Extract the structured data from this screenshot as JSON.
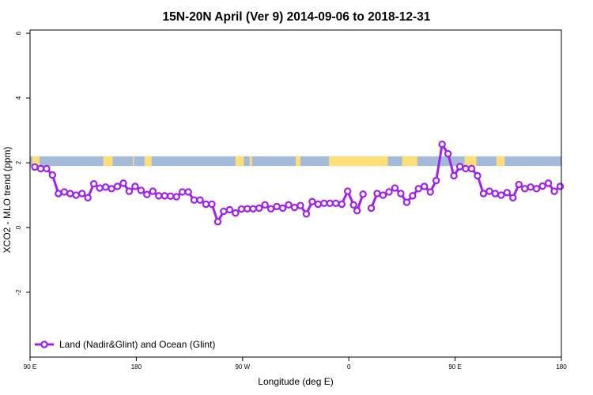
{
  "chart_data": {
    "type": "line",
    "title": "15N-20N April (Ver 9)   2014-09-06 to 2018-12-31",
    "xlabel": "Longitude (deg E)",
    "ylabel": "XCO2 - MLO trend (ppm)",
    "x_ticks": [
      {
        "value": 90,
        "label": "90 E"
      },
      {
        "value": 180,
        "label": "180"
      },
      {
        "value": 270,
        "label": "90 W"
      },
      {
        "value": 360,
        "label": "0"
      },
      {
        "value": 450,
        "label": "90 E"
      },
      {
        "value": 540,
        "label": "180"
      }
    ],
    "y_ticks": [
      {
        "value": -2,
        "label": "-2"
      },
      {
        "value": 0,
        "label": "0"
      },
      {
        "value": 2,
        "label": "2"
      },
      {
        "value": 4,
        "label": "4"
      },
      {
        "value": 6,
        "label": "6"
      }
    ],
    "xlim": [
      90,
      540
    ],
    "ylim": [
      -4,
      6.1
    ],
    "grid": false,
    "legend_position": "bottom-left",
    "colors": {
      "series": "#a020f0",
      "ocean_band": "#a3bad8",
      "land_band": "#ffdd77"
    },
    "band": {
      "y_range": [
        1.9,
        2.2
      ],
      "land_segments": [
        [
          92,
          98
        ],
        [
          152,
          157
        ],
        [
          157,
          160
        ],
        [
          177,
          178
        ],
        [
          187,
          193
        ],
        [
          264,
          271
        ],
        [
          276,
          278
        ],
        [
          315,
          319
        ],
        [
          343,
          393
        ],
        [
          405,
          418
        ],
        [
          458,
          468
        ],
        [
          485,
          492
        ]
      ]
    },
    "series": [
      {
        "name": "Land (Nadir&Glint) and Ocean (Glint)",
        "points": [
          [
            94,
            1.87
          ],
          [
            99,
            1.82
          ],
          [
            104,
            1.82
          ],
          [
            109,
            1.62
          ],
          [
            114,
            1.05
          ],
          [
            119,
            1.1
          ],
          [
            124,
            1.05
          ],
          [
            129,
            1.0
          ],
          [
            134,
            1.05
          ],
          [
            139,
            0.92
          ],
          [
            144,
            1.35
          ],
          [
            149,
            1.22
          ],
          [
            154,
            1.25
          ],
          [
            159,
            1.2
          ],
          [
            164,
            1.27
          ],
          [
            169,
            1.37
          ],
          [
            174,
            1.12
          ],
          [
            179,
            1.27
          ],
          [
            184,
            1.15
          ],
          [
            189,
            1.02
          ],
          [
            194,
            1.12
          ],
          [
            199,
            0.98
          ],
          [
            204,
            0.98
          ],
          [
            209,
            0.97
          ],
          [
            214,
            0.95
          ],
          [
            219,
            1.1
          ],
          [
            224,
            1.1
          ],
          [
            229,
            0.85
          ],
          [
            234,
            0.85
          ],
          [
            239,
            0.72
          ],
          [
            244,
            0.72
          ],
          [
            249,
            0.18
          ],
          [
            254,
            0.5
          ],
          [
            259,
            0.55
          ],
          [
            264,
            0.45
          ],
          [
            269,
            0.57
          ],
          [
            274,
            0.58
          ],
          [
            279,
            0.58
          ],
          [
            284,
            0.6
          ],
          [
            289,
            0.7
          ],
          [
            294,
            0.58
          ],
          [
            299,
            0.65
          ],
          [
            304,
            0.6
          ],
          [
            309,
            0.7
          ],
          [
            314,
            0.62
          ],
          [
            319,
            0.68
          ],
          [
            324,
            0.42
          ],
          [
            329,
            0.8
          ],
          [
            334,
            0.72
          ],
          [
            339,
            0.75
          ],
          [
            344,
            0.75
          ],
          [
            349,
            0.75
          ],
          [
            354,
            0.72
          ],
          [
            359,
            1.12
          ],
          [
            364,
            0.7
          ],
          [
            367,
            0.52
          ],
          [
            372,
            1.03
          ],
          null,
          [
            379,
            0.6
          ],
          [
            384,
            1.05
          ],
          [
            389,
            1.0
          ],
          [
            394,
            1.1
          ],
          [
            399,
            1.22
          ],
          [
            404,
            1.05
          ],
          [
            409,
            0.78
          ],
          [
            414,
            0.98
          ],
          [
            419,
            1.2
          ],
          [
            424,
            1.27
          ],
          [
            429,
            1.1
          ],
          [
            434,
            1.45
          ],
          [
            439,
            2.57
          ],
          [
            444,
            2.28
          ],
          [
            449,
            1.6
          ],
          [
            454,
            1.88
          ],
          [
            459,
            1.82
          ],
          [
            464,
            1.82
          ],
          [
            469,
            1.6
          ],
          [
            474,
            1.05
          ],
          [
            479,
            1.12
          ],
          [
            484,
            1.05
          ],
          [
            489,
            1.0
          ],
          [
            494,
            1.08
          ],
          [
            499,
            0.92
          ],
          [
            504,
            1.33
          ],
          [
            509,
            1.2
          ],
          [
            514,
            1.25
          ],
          [
            519,
            1.2
          ],
          [
            524,
            1.28
          ],
          [
            529,
            1.37
          ],
          [
            534,
            1.12
          ],
          [
            539,
            1.27
          ]
        ]
      }
    ]
  }
}
